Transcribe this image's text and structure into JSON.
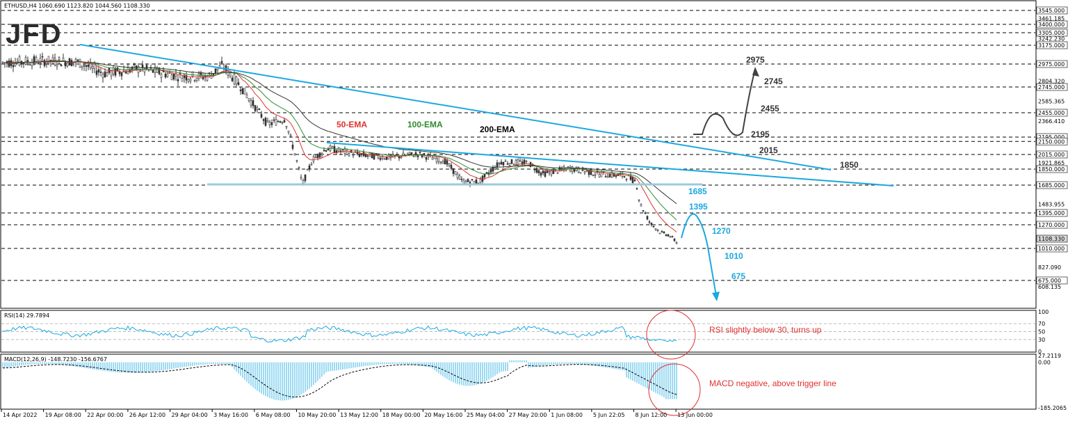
{
  "header": {
    "symbol_info": "ETHUSD,H4  1060.690 1123.820 1044.560 1108.330"
  },
  "logo": {
    "text": "JFD"
  },
  "chart_data": {
    "type": "line",
    "title": "ETHUSD,H4",
    "ohlc_last": {
      "open": 1060.69,
      "high": 1123.82,
      "low": 1044.56,
      "close": 1108.33
    },
    "price_axis": {
      "ticks": [
        "3545.000",
        "3461.185",
        "3400.000",
        "3305.000",
        "3242.230",
        "3175.000",
        "2975.000",
        "2804.320",
        "2745.000",
        "2585.365",
        "2455.000",
        "2366.410",
        "2195.000",
        "2150.000",
        "2015.000",
        "1921.865",
        "1850.000",
        "1685.000",
        "1483.955",
        "1395.000",
        "1270.000",
        "1108.330",
        "1010.000",
        "827.090",
        "675.000",
        "608.135"
      ],
      "ylim": [
        608.135,
        3545
      ]
    },
    "time_axis": [
      "14 Apr 2022",
      "19 Apr 08:00",
      "22 Apr 00:00",
      "26 Apr 12:00",
      "29 Apr 04:00",
      "3 May 16:00",
      "6 May 08:00",
      "10 May 20:00",
      "13 May 12:00",
      "18 May 00:00",
      "20 May 16:00",
      "25 May 04:00",
      "27 May 20:00",
      "1 Jun 08:00",
      "5 Jun 22:05",
      "8 Jun 12:00",
      "13 Jun 00:00"
    ],
    "levels": [
      {
        "value": 3545,
        "label": "3545.000"
      },
      {
        "value": 3400,
        "label": "3400.000"
      },
      {
        "value": 3305,
        "label": "3305.000"
      },
      {
        "value": 3175,
        "label": "3175.000"
      },
      {
        "value": 2975,
        "label": "2975.000"
      },
      {
        "value": 2745,
        "label": "2745.000"
      },
      {
        "value": 2455,
        "label": "2455.000"
      },
      {
        "value": 2195,
        "label": "2195.000"
      },
      {
        "value": 2150,
        "label": "2150.000"
      },
      {
        "value": 2015,
        "label": "2015.000"
      },
      {
        "value": 1850,
        "label": "1850.000"
      },
      {
        "value": 1685,
        "label": "1685.000"
      },
      {
        "value": 1395,
        "label": "1395.000"
      },
      {
        "value": 1270,
        "label": "1270.000"
      },
      {
        "value": 1010,
        "label": "1010.000"
      },
      {
        "value": 675,
        "label": "675.000"
      }
    ],
    "ema_labels": [
      {
        "text": "50-EMA",
        "color": "#e03030"
      },
      {
        "text": "100-EMA",
        "color": "#2e8b2e"
      },
      {
        "text": "200-EMA",
        "color": "#000000"
      }
    ],
    "scenario_labels": {
      "bull": [
        "2975",
        "2745",
        "2455",
        "2195",
        "2015",
        "1850"
      ],
      "bear": [
        "1685",
        "1395",
        "1270",
        "1010",
        "675"
      ]
    },
    "rsi": {
      "title": "RSI(14) 29.7894",
      "value": 29.7894,
      "ticks": [
        "100",
        "70",
        "50",
        "30",
        "0"
      ],
      "levels": [
        70,
        50,
        30
      ],
      "note": "RSI slightly below 30, turns up"
    },
    "macd": {
      "title": "MACD(12,26,9) -148.7230 -156.6767",
      "main": -148.723,
      "signal": -156.6767,
      "ticks": [
        "27.2119",
        "0.00",
        "-185.2065"
      ],
      "note": "MACD negative, above trigger line"
    },
    "colors": {
      "trendline": "#1aa8e0",
      "scenario_bear": "#1aa8e0",
      "scenario_bull": "#404040",
      "candle": "#303030",
      "level_grid": "#000000",
      "note": "#e03030"
    }
  }
}
